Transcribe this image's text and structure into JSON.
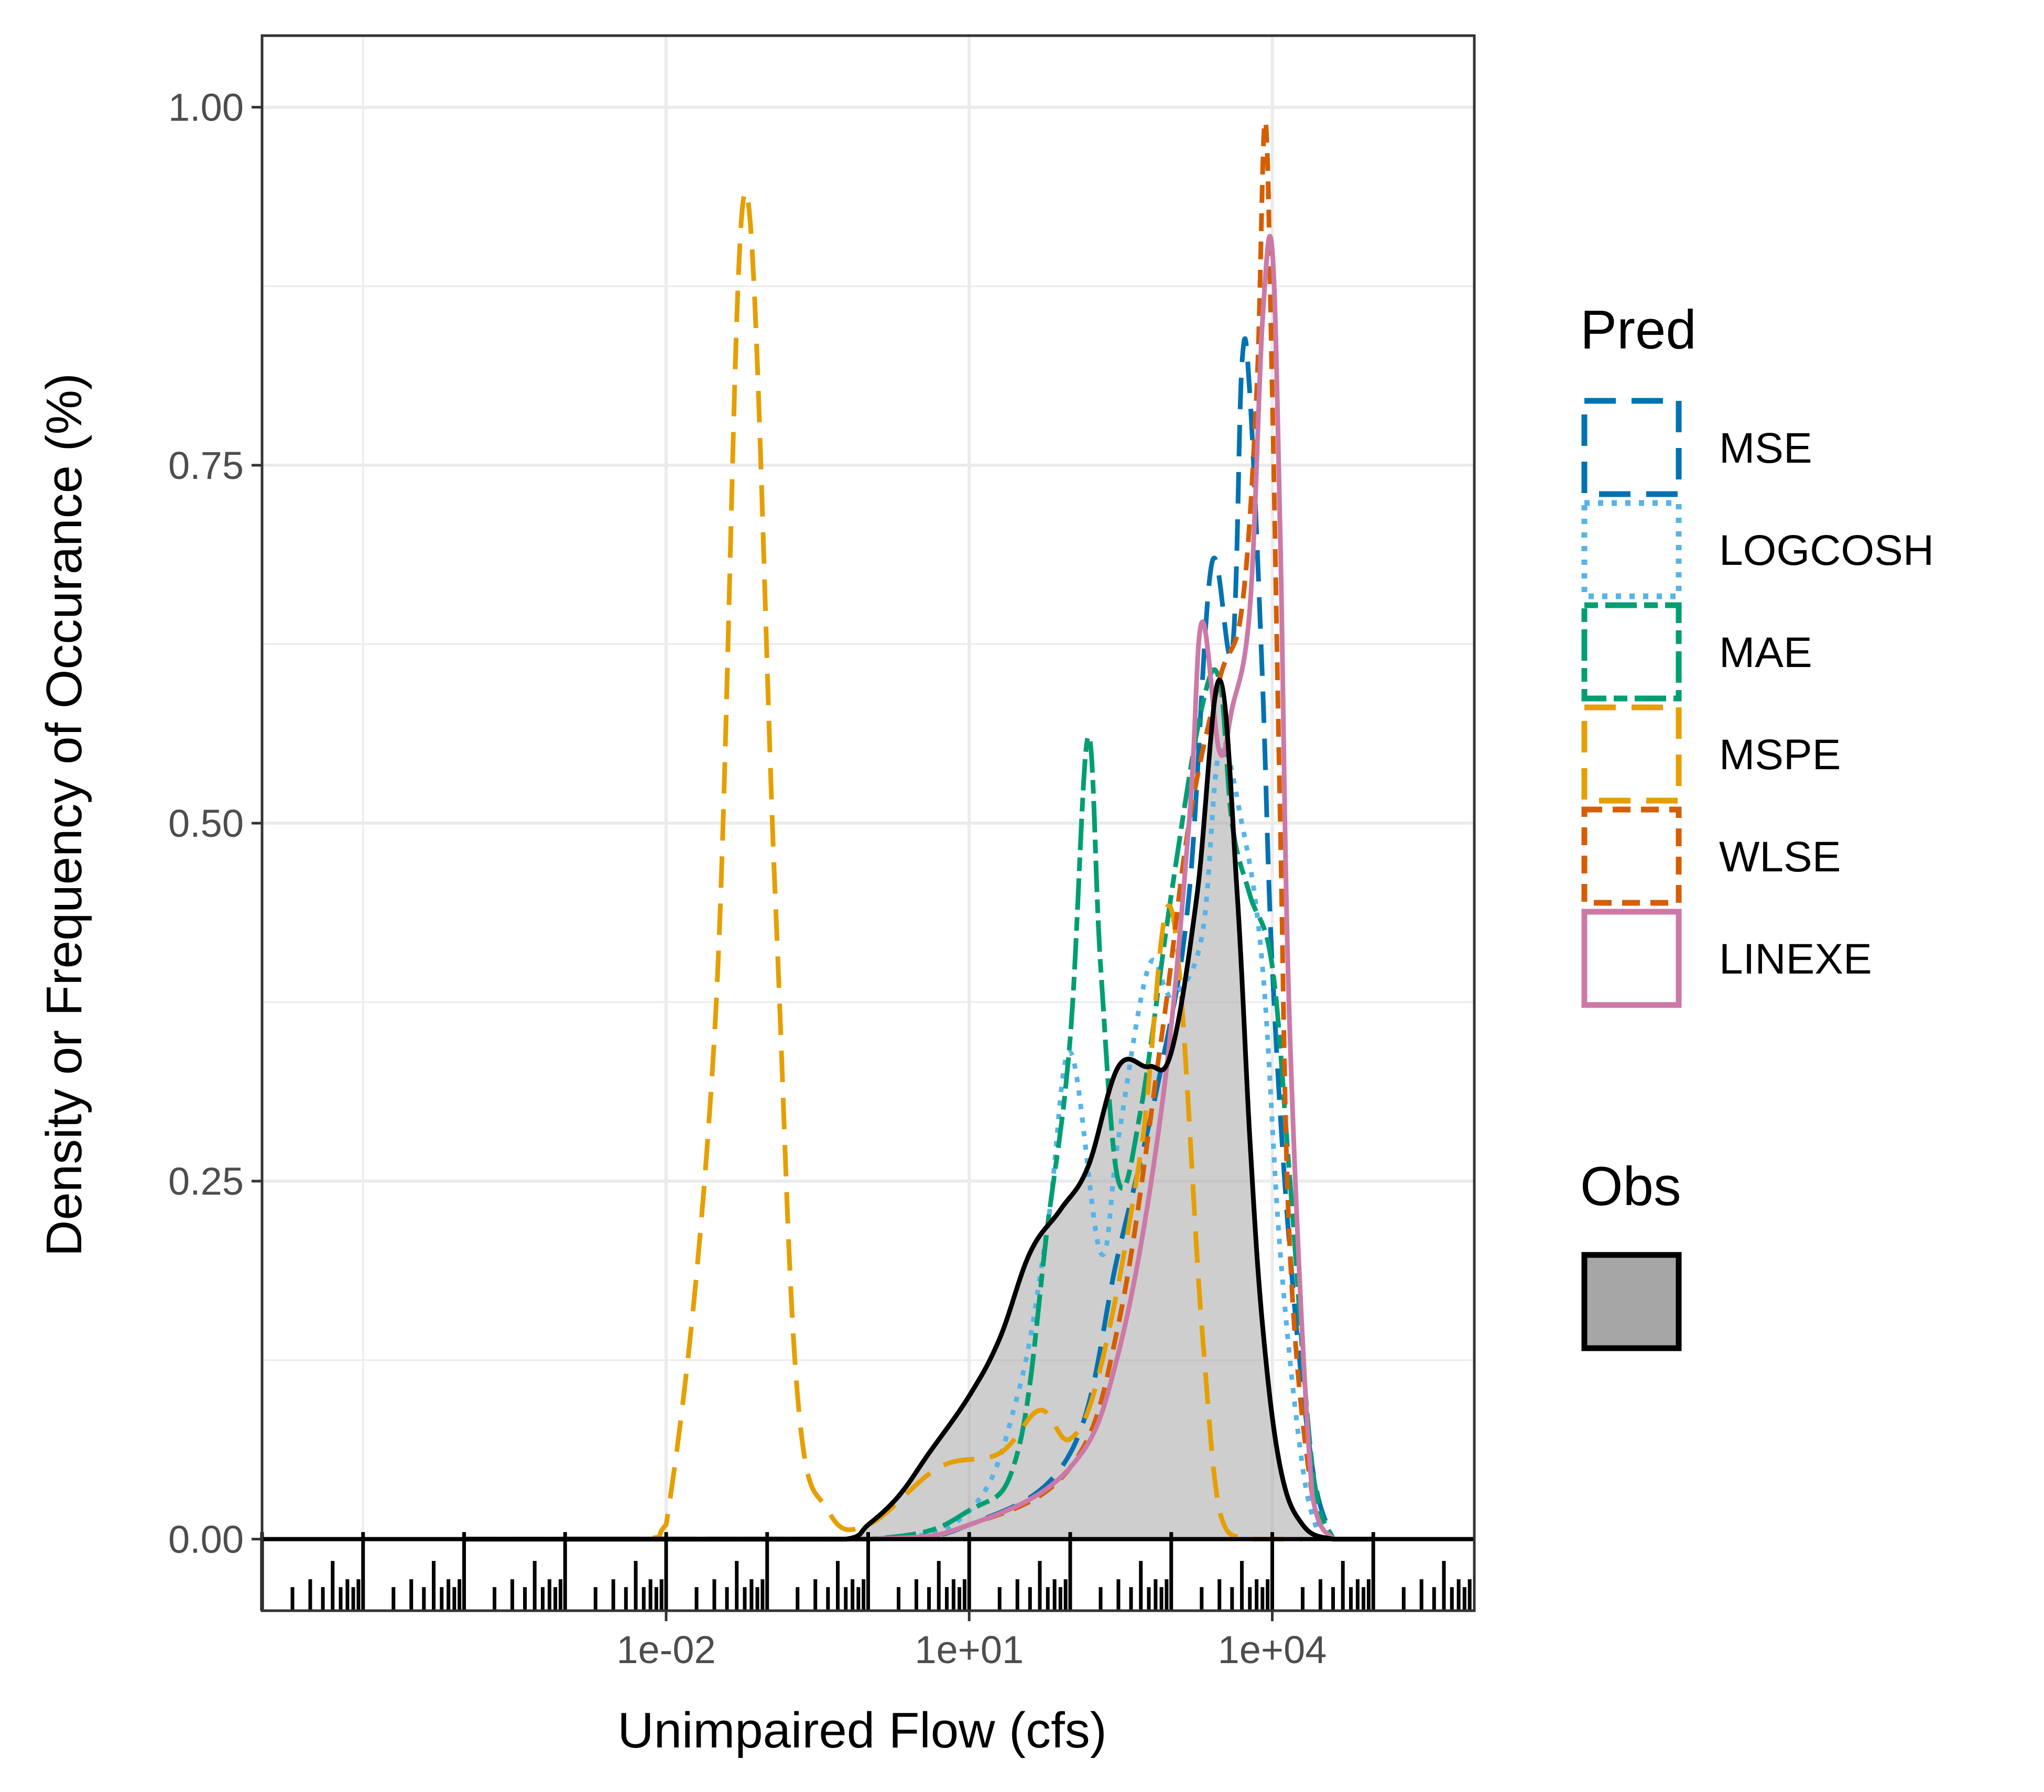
{
  "chart_data": {
    "type": "area",
    "title": "",
    "xlabel": "Unimpaired Flow (cfs)",
    "ylabel": "Density or Frequency of Occurance (%)",
    "x_scale": "log10",
    "xlim": [
      1e-06,
      1000000.0
    ],
    "ylim": [
      -0.05,
      1.05
    ],
    "x_ticks": [
      0.01,
      10,
      10000
    ],
    "x_tick_labels": [
      "1e-02",
      "1e+01",
      "1e+04"
    ],
    "y_ticks": [
      0,
      0.25,
      0.5,
      0.75,
      1
    ],
    "y_tick_labels": [
      "0.00",
      "0.25",
      "0.50",
      "0.75",
      "1.00"
    ],
    "grid": true,
    "legend_position": "right",
    "legends": [
      {
        "title": "Pred",
        "entries": [
          "MSE",
          "LOGCOSH",
          "MAE",
          "MSPE",
          "WLSE",
          "LINEXE"
        ]
      },
      {
        "title": "Obs",
        "entries": [
          ""
        ]
      }
    ],
    "series": [
      {
        "name": "MSE",
        "color": "#0072B2",
        "linetype": "longdash",
        "x": [
          0.001,
          1,
          10,
          100,
          300,
          800,
          1500,
          2500,
          4000,
          5000,
          6000,
          8000,
          10000,
          15000,
          25000,
          40000
        ],
        "y": [
          0,
          0,
          0.01,
          0.06,
          0.2,
          0.33,
          0.45,
          0.68,
          0.62,
          0.82,
          0.8,
          0.6,
          0.4,
          0.2,
          0.05,
          0
        ]
      },
      {
        "name": "LOGCOSH",
        "color": "#56B4E9",
        "linetype": "dotted",
        "x": [
          0.001,
          1,
          10,
          30,
          60,
          100,
          200,
          300,
          600,
          1000,
          2000,
          3000,
          5000,
          8000,
          12000,
          20000,
          30000
        ],
        "y": [
          0,
          0,
          0.02,
          0.1,
          0.22,
          0.34,
          0.2,
          0.28,
          0.4,
          0.38,
          0.42,
          0.55,
          0.5,
          0.4,
          0.2,
          0.05,
          0
        ]
      },
      {
        "name": "MAE",
        "color": "#009E73",
        "linetype": "twodash",
        "x": [
          0.001,
          1,
          10,
          30,
          60,
          100,
          150,
          200,
          300,
          500,
          1000,
          2000,
          3000,
          4000,
          6000,
          10000,
          15000,
          25000,
          40000
        ],
        "y": [
          0,
          0,
          0.02,
          0.06,
          0.22,
          0.35,
          0.56,
          0.4,
          0.25,
          0.3,
          0.45,
          0.58,
          0.6,
          0.5,
          0.45,
          0.4,
          0.25,
          0.05,
          0
        ]
      },
      {
        "name": "MSPE",
        "color": "#E69F00",
        "linetype": "longdash",
        "x": [
          0.0001,
          0.005,
          0.01,
          0.03,
          0.06,
          0.12,
          0.2,
          0.4,
          1,
          5,
          20,
          50,
          100,
          200,
          500,
          1000,
          2000,
          3000,
          5000,
          10000,
          20000
        ],
        "y": [
          0,
          0,
          0.01,
          0.35,
          0.94,
          0.45,
          0.1,
          0.02,
          0.01,
          0.05,
          0.06,
          0.09,
          0.07,
          0.12,
          0.27,
          0.44,
          0.15,
          0.02,
          0,
          0,
          0
        ]
      },
      {
        "name": "WLSE",
        "color": "#D55E00",
        "linetype": "dashed",
        "x": [
          0.001,
          1,
          10,
          100,
          300,
          800,
          1500,
          3000,
          5000,
          7000,
          8500,
          10000,
          12000,
          15000,
          25000,
          40000
        ],
        "y": [
          0,
          0,
          0.01,
          0.05,
          0.15,
          0.35,
          0.5,
          0.6,
          0.65,
          0.8,
          0.99,
          0.8,
          0.5,
          0.2,
          0.03,
          0
        ]
      },
      {
        "name": "LINEXE",
        "color": "#CC79A7",
        "linetype": "solid",
        "x": [
          0.001,
          1,
          10,
          100,
          300,
          800,
          1500,
          2000,
          3000,
          4000,
          6000,
          8000,
          10000,
          12000,
          15000,
          25000,
          40000
        ],
        "y": [
          0,
          0,
          0.01,
          0.05,
          0.13,
          0.3,
          0.5,
          0.64,
          0.55,
          0.58,
          0.65,
          0.85,
          0.9,
          0.7,
          0.35,
          0.03,
          0
        ]
      },
      {
        "name": "Obs",
        "color": "#000000",
        "fill": "#a6a6a6",
        "linetype": "solid",
        "x": [
          0.0001,
          0.1,
          0.6,
          1,
          2,
          4,
          10,
          20,
          40,
          80,
          150,
          300,
          600,
          1000,
          1800,
          3000,
          4500,
          6000,
          8000,
          12000,
          20000,
          40000,
          100000
        ],
        "y": [
          0,
          0,
          0,
          0.01,
          0.03,
          0.06,
          0.1,
          0.14,
          0.2,
          0.23,
          0.26,
          0.33,
          0.33,
          0.34,
          0.45,
          0.6,
          0.45,
          0.28,
          0.15,
          0.05,
          0.01,
          0,
          0
        ]
      }
    ]
  }
}
